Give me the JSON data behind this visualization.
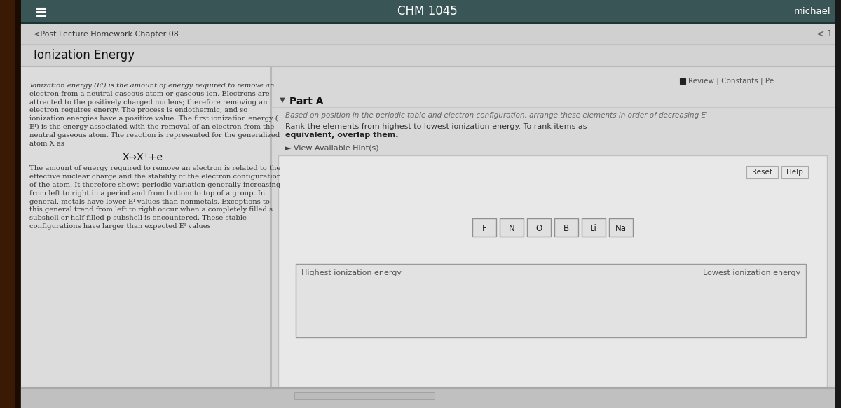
{
  "header_text": "CHM 1045",
  "header_right_text": "michael",
  "nav_link": "<Post Lecture Homework Chapter 08",
  "section_title": "Ionization Energy",
  "review_text": "Review | Constants | Pe",
  "part_a_label": "Part A",
  "part_a_intro": "Based on position in the periodic table and electron configuration, arrange these elements in order of decreasing Eᴵ",
  "part_a_instr1": "Rank the elements from highest to lowest ionization energy. To rank items as equivalent, overlap them.",
  "hint_text": "► View Available Hint(s)",
  "reset_text": "Reset",
  "help_text": "Help",
  "elements": [
    "F",
    "N",
    "O",
    "B",
    "Li",
    "Na"
  ],
  "highest_label": "Highest ionization energy",
  "lowest_label": "Lowest ionization energy",
  "left_text_lines": [
    "Ionization energy (Eᴵ) is the amount of energy required to remove an",
    "electron from a neutral gaseous atom or gaseous ion. Electrons are",
    "attracted to the positively charged nucleus; therefore removing an",
    "electron requires energy. The process is endothermic, and so",
    "ionization energies have a positive value. The first ionization energy (",
    "Eᴵ) is the energy associated with the removal of an electron from the",
    "neutral gaseous atom. The reaction is represented for the generalized",
    "atom X as"
  ],
  "reaction_text": "X→X⁺+e⁻",
  "left_text_lines2": [
    "The amount of energy required to remove an electron is related to the",
    "effective nuclear charge and the stability of the electron configuration",
    "of the atom. It therefore shows periodic variation generally increasing",
    "from left to right in a period and from bottom to top of a group. In",
    "general, metals have lower Eᴵ values than nonmetals. Exceptions to",
    "this general trend from left to right occur when a completely filled s",
    "subshell or half-filled p subshell is encountered. These stable",
    "configurations have larger than expected Eᴵ values"
  ],
  "wood_color": "#5a3010",
  "black_border": "#0a0a0a",
  "screen_bg": "#c8c8c8",
  "header_bg": "#3a5555",
  "header_sep": "#1a3535",
  "content_bg": "#d5d5d5",
  "left_panel_bg": "#dcdcdc",
  "right_panel_bg": "#d8d8d8",
  "white_area_bg": "#e8e8e8",
  "panel_sep_color": "#b8b8b8",
  "nav_bg": "#d0d0d0",
  "drop_area_bg": "#e2e2e2",
  "drop_area_border": "#999999",
  "element_bg": "#e0e0e0",
  "element_border": "#909090",
  "btn_bg": "#e8e8e8",
  "btn_border": "#aaaaaa",
  "bottom_bar_bg": "#c0c0c0",
  "scrollbar_bg": "#bbbbbb"
}
